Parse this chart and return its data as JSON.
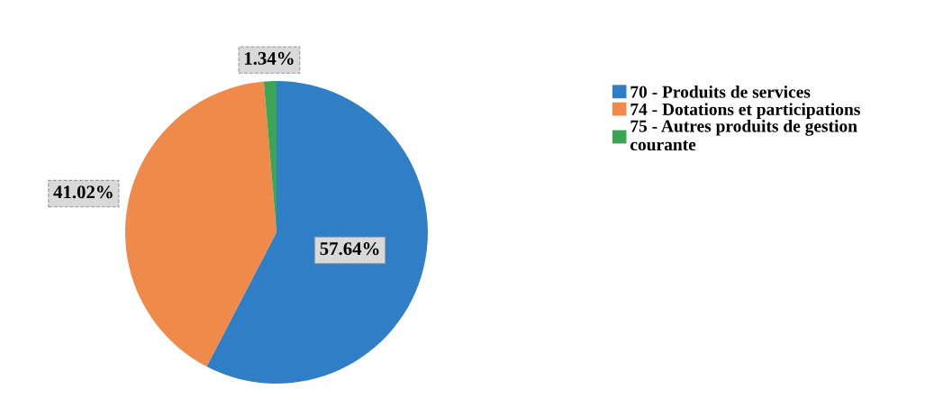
{
  "chart_data": {
    "type": "pie",
    "categories": [
      "70 - Produits de services",
      "74 - Dotations et participations",
      "75 - Autres produits de gestion\ncourante"
    ],
    "values": [
      57.64,
      41.02,
      1.34
    ],
    "colors": [
      "#2f7ec6",
      "#f08a4b",
      "#3aa655"
    ],
    "value_labels": [
      "57.64%",
      "41.02%",
      "1.34%"
    ],
    "legend": "right"
  }
}
